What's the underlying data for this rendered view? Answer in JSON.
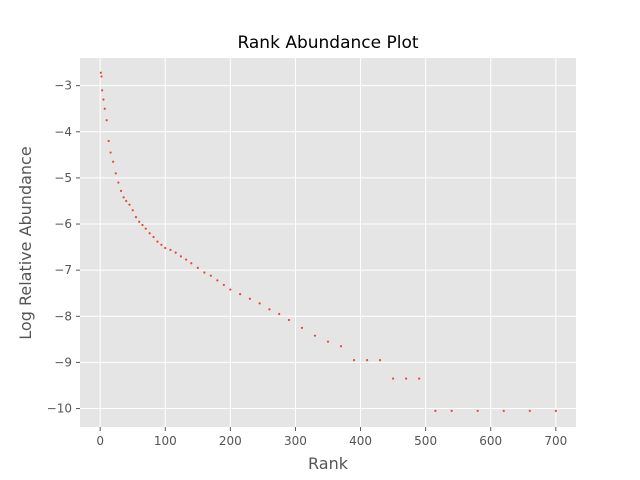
{
  "chart_data": {
    "type": "scatter",
    "title": "Rank Abundance Plot",
    "xlabel": "Rank",
    "ylabel": "Log Relative Abundance",
    "xlim": [
      -31,
      731
    ],
    "ylim": [
      -10.4,
      -2.4
    ],
    "xticks": [
      0,
      100,
      200,
      300,
      400,
      500,
      600,
      700
    ],
    "yticks": [
      -3,
      -4,
      -5,
      -6,
      -7,
      -8,
      -9,
      -10
    ],
    "xtick_labels": [
      "0",
      "100",
      "200",
      "300",
      "400",
      "500",
      "600",
      "700"
    ],
    "ytick_labels": [
      "−3",
      "−4",
      "−5",
      "−6",
      "−7",
      "−8",
      "−9",
      "−10"
    ],
    "grid": true,
    "colors": {
      "points": "#E24A33",
      "background": "#E5E5E5",
      "grid": "#FFFFFF"
    },
    "series": [
      {
        "x": [
          1,
          2,
          3,
          5,
          7,
          10,
          13,
          16,
          20,
          24,
          28,
          32,
          36,
          40,
          45,
          50,
          55,
          60,
          65,
          70,
          76,
          82,
          88,
          94,
          100,
          108,
          116,
          124,
          132,
          140,
          150,
          160,
          170,
          180,
          190,
          200,
          215,
          230,
          245,
          260,
          275,
          290,
          310,
          330,
          350,
          370,
          390,
          410,
          430,
          450,
          470,
          490,
          515,
          540,
          580,
          620,
          660,
          700
        ],
        "y": [
          -2.72,
          -2.8,
          -3.1,
          -3.3,
          -3.5,
          -3.75,
          -4.2,
          -4.45,
          -4.65,
          -4.9,
          -5.1,
          -5.28,
          -5.42,
          -5.5,
          -5.58,
          -5.7,
          -5.85,
          -5.95,
          -6.02,
          -6.1,
          -6.2,
          -6.28,
          -6.38,
          -6.45,
          -6.52,
          -6.56,
          -6.62,
          -6.7,
          -6.77,
          -6.85,
          -6.95,
          -7.05,
          -7.12,
          -7.22,
          -7.32,
          -7.42,
          -7.52,
          -7.62,
          -7.72,
          -7.85,
          -7.95,
          -8.08,
          -8.25,
          -8.42,
          -8.55,
          -8.65,
          -8.95,
          -8.95,
          -8.95,
          -9.35,
          -9.35,
          -9.35,
          -10.05,
          -10.05,
          -10.05,
          -10.05,
          -10.05,
          -10.05
        ]
      }
    ]
  }
}
